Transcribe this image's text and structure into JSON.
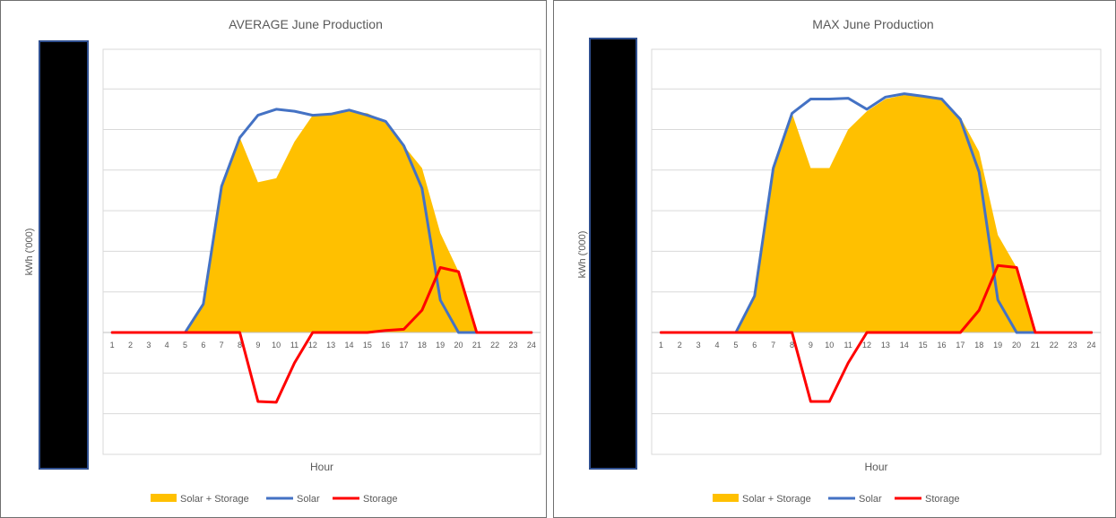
{
  "chart_data": [
    {
      "type": "line",
      "title": "AVERAGE June Production",
      "xlabel": "Hour",
      "ylabel": "kWh ('000)",
      "categories": [
        "1",
        "2",
        "3",
        "4",
        "5",
        "6",
        "7",
        "8",
        "9",
        "10",
        "11",
        "12",
        "13",
        "14",
        "15",
        "16",
        "17",
        "18",
        "19",
        "20",
        "21",
        "22",
        "23",
        "24"
      ],
      "grid": true,
      "legend_position": "bottom",
      "series": [
        {
          "name": "Solar + Storage",
          "kind": "area",
          "color": "#FFC000",
          "values": [
            0,
            0,
            0,
            0,
            0,
            0.7,
            3.6,
            4.8,
            3.7,
            3.8,
            4.7,
            5.35,
            5.4,
            5.45,
            5.4,
            5.2,
            4.6,
            4.05,
            2.45,
            1.5,
            0,
            0,
            0,
            0
          ]
        },
        {
          "name": "Solar",
          "kind": "line",
          "color": "#4472C4",
          "values": [
            0,
            0,
            0,
            0,
            0,
            0.7,
            3.6,
            4.8,
            5.35,
            5.5,
            5.45,
            5.35,
            5.38,
            5.48,
            5.35,
            5.2,
            4.6,
            3.55,
            0.8,
            0,
            0,
            0,
            0,
            0
          ]
        },
        {
          "name": "Storage",
          "kind": "line",
          "color": "#FF0000",
          "values": [
            0,
            0,
            0,
            0,
            0,
            0,
            0,
            0,
            -1.7,
            -1.72,
            -0.75,
            0,
            0,
            0,
            0,
            0.05,
            0.08,
            0.55,
            1.6,
            1.5,
            0,
            0,
            0,
            0
          ]
        }
      ]
    },
    {
      "type": "line",
      "title": "MAX June Production",
      "xlabel": "Hour",
      "ylabel": "kWh ('000)",
      "categories": [
        "1",
        "2",
        "3",
        "4",
        "5",
        "6",
        "7",
        "8",
        "9",
        "10",
        "11",
        "12",
        "13",
        "14",
        "15",
        "16",
        "17",
        "18",
        "19",
        "20",
        "21",
        "22",
        "23",
        "24"
      ],
      "grid": true,
      "legend_position": "bottom",
      "series": [
        {
          "name": "Solar + Storage",
          "kind": "area",
          "color": "#FFC000",
          "values": [
            0,
            0,
            0,
            0,
            0,
            0.9,
            4.05,
            5.4,
            4.05,
            4.05,
            5.0,
            5.45,
            5.75,
            5.85,
            5.8,
            5.75,
            5.3,
            4.45,
            2.4,
            1.6,
            0,
            0,
            0,
            0
          ]
        },
        {
          "name": "Solar",
          "kind": "line",
          "color": "#4472C4",
          "values": [
            0,
            0,
            0,
            0,
            0,
            0.9,
            4.05,
            5.4,
            5.75,
            5.75,
            5.77,
            5.5,
            5.8,
            5.88,
            5.82,
            5.75,
            5.25,
            3.95,
            0.8,
            0,
            0,
            0,
            0,
            0
          ]
        },
        {
          "name": "Storage",
          "kind": "line",
          "color": "#FF0000",
          "values": [
            0,
            0,
            0,
            0,
            0,
            0,
            0,
            0,
            -1.7,
            -1.7,
            -0.75,
            0,
            0,
            0,
            0,
            0,
            0,
            0.55,
            1.65,
            1.6,
            0,
            0,
            0,
            0
          ]
        }
      ]
    }
  ]
}
